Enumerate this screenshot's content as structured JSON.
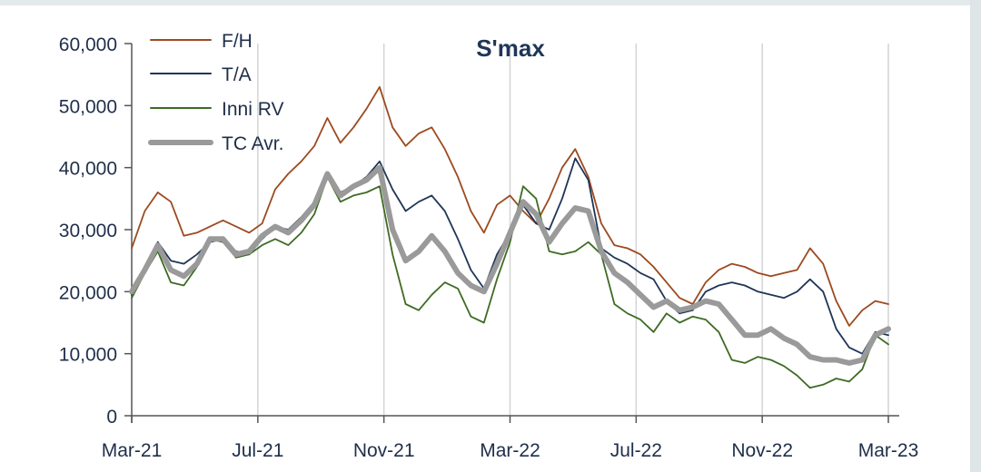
{
  "chart_data": {
    "type": "line",
    "title": "S'max",
    "xlabel": "",
    "ylabel": "",
    "ylim": [
      0,
      60000
    ],
    "yticks": [
      "0",
      "10,000",
      "20,000",
      "30,000",
      "40,000",
      "50,000",
      "60,000"
    ],
    "ytick_values": [
      0,
      10000,
      20000,
      30000,
      40000,
      50000,
      60000
    ],
    "xticks": [
      "Mar-21",
      "Jul-21",
      "Nov-21",
      "Mar-22",
      "Jul-22",
      "Nov-22",
      "Mar-23"
    ],
    "x_start": "Mar-21",
    "x_end": "Mar-23",
    "grid": "vertical",
    "legend": "top-left",
    "series": [
      {
        "name": "F/H",
        "color": "#9c4a1f",
        "values": [
          27000,
          33000,
          36000,
          34500,
          29000,
          29500,
          30500,
          31500,
          30500,
          29500,
          31000,
          36500,
          39000,
          41000,
          43500,
          48000,
          44000,
          46500,
          49500,
          53000,
          46500,
          43500,
          45500,
          46500,
          43000,
          38500,
          33000,
          29500,
          34000,
          35500,
          33000,
          31000,
          35000,
          40000,
          43000,
          38500,
          31000,
          27500,
          27000,
          26000,
          24000,
          21500,
          19000,
          18000,
          21500,
          23500,
          24500,
          24000,
          23000,
          22500,
          23000,
          23500,
          27000,
          24500,
          18500,
          14500,
          17000,
          18500,
          18000
        ]
      },
      {
        "name": "T/A",
        "color": "#1f3658",
        "values": [
          19500,
          23500,
          28000,
          25000,
          24500,
          26000,
          28000,
          28500,
          26500,
          26000,
          28500,
          30500,
          30000,
          32000,
          34500,
          38500,
          36000,
          37000,
          38500,
          41000,
          36500,
          33000,
          34500,
          35500,
          33000,
          28500,
          23500,
          20500,
          26000,
          29500,
          34000,
          31000,
          30000,
          35000,
          41500,
          38000,
          27000,
          25500,
          24500,
          23000,
          22000,
          18500,
          16500,
          17000,
          20000,
          21000,
          21500,
          21000,
          20000,
          19500,
          19000,
          20000,
          22000,
          20000,
          14000,
          11000,
          10000,
          13500,
          13000
        ]
      },
      {
        "name": "Inni RV",
        "color": "#3e6b23",
        "values": [
          19000,
          23000,
          26500,
          21500,
          21000,
          24000,
          28500,
          28000,
          25500,
          26000,
          27500,
          28500,
          27500,
          29500,
          32500,
          38500,
          34500,
          35500,
          36000,
          37000,
          26000,
          18000,
          17000,
          19500,
          21500,
          20500,
          16000,
          15000,
          22000,
          28000,
          37000,
          35000,
          26500,
          26000,
          26500,
          28000,
          26000,
          18000,
          16500,
          15500,
          13500,
          16500,
          15000,
          16000,
          15500,
          13500,
          9000,
          8500,
          9500,
          9000,
          8000,
          6500,
          4500,
          5000,
          6000,
          5500,
          7500,
          13000,
          11500
        ]
      },
      {
        "name": "TC Avr.",
        "color": "#9a9a9a",
        "values": [
          20000,
          23500,
          27500,
          23500,
          22500,
          24500,
          28500,
          28500,
          26000,
          26500,
          29000,
          30500,
          29500,
          31500,
          34000,
          39000,
          35500,
          37000,
          38000,
          40000,
          30000,
          25000,
          26500,
          29000,
          26500,
          23000,
          21000,
          20000,
          24500,
          29500,
          34500,
          32500,
          28000,
          31000,
          33500,
          33000,
          26500,
          23000,
          21500,
          19500,
          17500,
          18500,
          17000,
          17500,
          18500,
          18000,
          15500,
          13000,
          13000,
          14000,
          12500,
          11500,
          9500,
          9000,
          9000,
          8500,
          9000,
          13000,
          14000
        ]
      }
    ]
  }
}
